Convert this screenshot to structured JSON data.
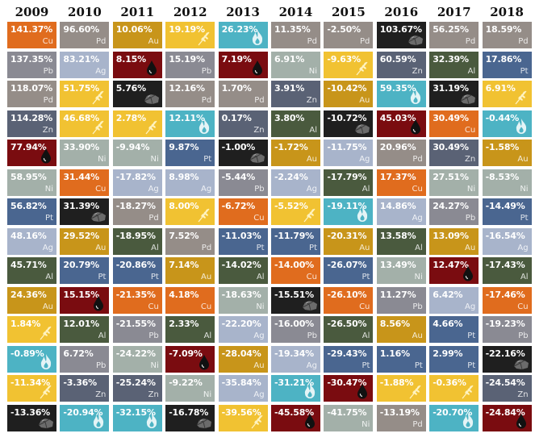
{
  "chart_data": {
    "type": "table",
    "title": "",
    "years": [
      "2009",
      "2010",
      "2011",
      "2012",
      "2013",
      "2014",
      "2015",
      "2016",
      "2017",
      "2018"
    ],
    "columns": [
      [
        [
          "141.37%",
          "Cu"
        ],
        [
          "137.35%",
          "Pb"
        ],
        [
          "118.07%",
          "Pd"
        ],
        [
          "114.28%",
          "Zn"
        ],
        [
          "77.94%",
          "Oil"
        ],
        [
          "58.95%",
          "Ni"
        ],
        [
          "56.82%",
          "Pt"
        ],
        [
          "48.16%",
          "Ag"
        ],
        [
          "45.71%",
          "Al"
        ],
        [
          "24.36%",
          "Au"
        ],
        [
          "1.84%",
          "Wheat"
        ],
        [
          "-0.89%",
          "Gas"
        ],
        [
          "-11.34%",
          "Wheat"
        ],
        [
          "-13.36%",
          "Coal"
        ]
      ],
      [
        [
          "96.60%",
          "Pd"
        ],
        [
          "83.21%",
          "Ag"
        ],
        [
          "51.75%",
          "Wheat"
        ],
        [
          "46.68%",
          "Wheat"
        ],
        [
          "33.90%",
          "Ni"
        ],
        [
          "31.44%",
          "Cu"
        ],
        [
          "31.39%",
          "Coal"
        ],
        [
          "29.52%",
          "Au"
        ],
        [
          "20.79%",
          "Pt"
        ],
        [
          "15.15%",
          "Oil"
        ],
        [
          "12.01%",
          "Al"
        ],
        [
          "6.72%",
          "Pb"
        ],
        [
          "-3.36%",
          "Zn"
        ],
        [
          "-20.94%",
          "Gas"
        ]
      ],
      [
        [
          "10.06%",
          "Au"
        ],
        [
          "8.15%",
          "Oil"
        ],
        [
          "5.76%",
          "Coal"
        ],
        [
          "2.78%",
          "Wheat"
        ],
        [
          "-9.94%",
          "Ni"
        ],
        [
          "-17.82%",
          "Ag"
        ],
        [
          "-18.27%",
          "Pd"
        ],
        [
          "-18.95%",
          "Al"
        ],
        [
          "-20.86%",
          "Pt"
        ],
        [
          "-21.35%",
          "Cu"
        ],
        [
          "-21.55%",
          "Pb"
        ],
        [
          "-24.22%",
          "Ni"
        ],
        [
          "-25.24%",
          "Zn"
        ],
        [
          "-32.15%",
          "Gas"
        ]
      ],
      [
        [
          "19.19%",
          "Wheat"
        ],
        [
          "15.19%",
          "Pb"
        ],
        [
          "12.16%",
          "Pd"
        ],
        [
          "12.11%",
          "Gas"
        ],
        [
          "9.87%",
          "Pt"
        ],
        [
          "8.98%",
          "Ag"
        ],
        [
          "8.00%",
          "Wheat"
        ],
        [
          "7.52%",
          "Pd"
        ],
        [
          "7.14%",
          "Au"
        ],
        [
          "4.18%",
          "Cu"
        ],
        [
          "2.33%",
          "Al"
        ],
        [
          "-7.09%",
          "Oil"
        ],
        [
          "-9.22%",
          "Ni"
        ],
        [
          "-16.78%",
          "Coal"
        ]
      ],
      [
        [
          "26.23%",
          "Gas"
        ],
        [
          "7.19%",
          "Oil"
        ],
        [
          "1.70%",
          "Pd"
        ],
        [
          "0.17%",
          "Zn"
        ],
        [
          "-1.00%",
          "Coal"
        ],
        [
          "-5.44%",
          "Pb"
        ],
        [
          "-6.72%",
          "Cu"
        ],
        [
          "-11.03%",
          "Pt"
        ],
        [
          "-14.02%",
          "Al"
        ],
        [
          "-18.63%",
          "Ni"
        ],
        [
          "-22.20%",
          "Ag"
        ],
        [
          "-28.04%",
          "Au"
        ],
        [
          "-35.84%",
          "Ag"
        ],
        [
          "-39.56%",
          "Wheat"
        ]
      ],
      [
        [
          "11.35%",
          "Pd"
        ],
        [
          "6.91%",
          "Ni"
        ],
        [
          "3.91%",
          "Zn"
        ],
        [
          "3.80%",
          "Al"
        ],
        [
          "-1.72%",
          "Au"
        ],
        [
          "-2.24%",
          "Ag"
        ],
        [
          "-5.52%",
          "Wheat"
        ],
        [
          "-11.79%",
          "Pt"
        ],
        [
          "-14.00%",
          "Cu"
        ],
        [
          "-15.51%",
          "Coal"
        ],
        [
          "-16.00%",
          "Pb"
        ],
        [
          "-19.34%",
          "Ag"
        ],
        [
          "-31.21%",
          "Gas"
        ],
        [
          "-45.58%",
          "Oil"
        ]
      ],
      [
        [
          "-2.50%",
          "Pd"
        ],
        [
          "-9.63%",
          "Wheat"
        ],
        [
          "-10.42%",
          "Au"
        ],
        [
          "-10.72%",
          "Coal"
        ],
        [
          "-11.75%",
          "Ag"
        ],
        [
          "-17.79%",
          "Al"
        ],
        [
          "-19.11%",
          "Gas"
        ],
        [
          "-20.31%",
          "Au"
        ],
        [
          "-26.07%",
          "Pt"
        ],
        [
          "-26.10%",
          "Cu"
        ],
        [
          "-26.50%",
          "Al"
        ],
        [
          "-29.43%",
          "Pt"
        ],
        [
          "-30.47%",
          "Oil"
        ],
        [
          "-41.75%",
          "Ni"
        ]
      ],
      [
        [
          "103.67%",
          "Coal"
        ],
        [
          "60.59%",
          "Zn"
        ],
        [
          "59.35%",
          "Gas"
        ],
        [
          "45.03%",
          "Oil"
        ],
        [
          "20.96%",
          "Pd"
        ],
        [
          "17.37%",
          "Cu"
        ],
        [
          "14.86%",
          "Ag"
        ],
        [
          "13.58%",
          "Al"
        ],
        [
          "13.49%",
          "Ni"
        ],
        [
          "11.27%",
          "Pb"
        ],
        [
          "8.56%",
          "Au"
        ],
        [
          "1.16%",
          "Pt"
        ],
        [
          "-1.88%",
          "Wheat"
        ],
        [
          "-13.19%",
          "Pd"
        ]
      ],
      [
        [
          "56.25%",
          "Pd"
        ],
        [
          "32.39%",
          "Al"
        ],
        [
          "31.19%",
          "Coal"
        ],
        [
          "30.49%",
          "Cu"
        ],
        [
          "30.49%",
          "Zn"
        ],
        [
          "27.51%",
          "Ni"
        ],
        [
          "24.27%",
          "Pb"
        ],
        [
          "13.09%",
          "Au"
        ],
        [
          "12.47%",
          "Oil"
        ],
        [
          "6.42%",
          "Ag"
        ],
        [
          "4.66%",
          "Pt"
        ],
        [
          "2.99%",
          "Pt"
        ],
        [
          "-0.36%",
          "Wheat"
        ],
        [
          "-20.70%",
          "Gas"
        ]
      ],
      [
        [
          "18.59%",
          "Pd"
        ],
        [
          "17.86%",
          "Pt"
        ],
        [
          "6.91%",
          "Wheat"
        ],
        [
          "-0.44%",
          "Gas"
        ],
        [
          "-1.58%",
          "Au"
        ],
        [
          "-8.53%",
          "Ni"
        ],
        [
          "-14.49%",
          "Pt"
        ],
        [
          "-16.54%",
          "Ag"
        ],
        [
          "-17.43%",
          "Al"
        ],
        [
          "-17.46%",
          "Cu"
        ],
        [
          "-19.23%",
          "Pb"
        ],
        [
          "-22.16%",
          "Coal"
        ],
        [
          "-24.54%",
          "Zn"
        ],
        [
          "-24.84%",
          "Oil"
        ]
      ]
    ],
    "colors": {
      "Cu": "#e06c1e",
      "Pb": "#8a8a93",
      "Pd": "#958d88",
      "Zn": "#5a6275",
      "Oil": "#7a0c10",
      "Ni": "#a3b0a9",
      "Pt": "#4a6690",
      "Ag": "#a8b4cb",
      "Al": "#4a5a3e",
      "Au": "#c8951a",
      "Wheat": "#f1c232",
      "Gas": "#4db3c4",
      "Coal": "#1f1f1f"
    }
  }
}
